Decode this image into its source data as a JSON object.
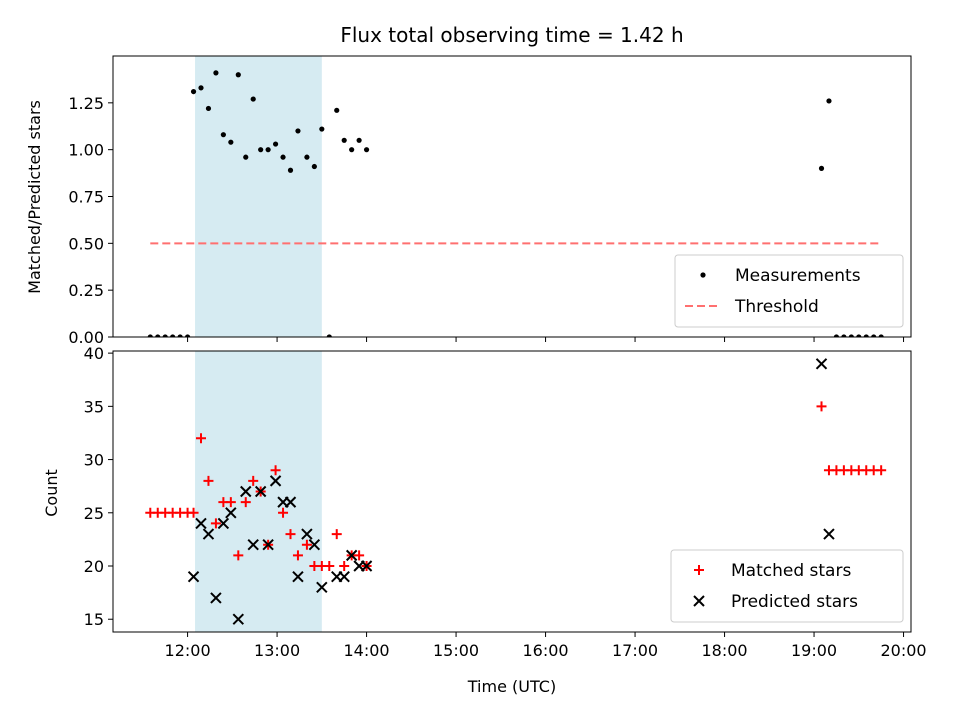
{
  "chart_data": [
    {
      "type": "scatter",
      "title": "Flux total observing time = 1.42 h",
      "xlabel": "",
      "ylabel": "Matched/Predicted stars",
      "xlim": [
        "11:10",
        "20:05"
      ],
      "ylim": [
        0,
        1.5
      ],
      "yticks": [
        0,
        0.25,
        0.5,
        0.75,
        1.0,
        1.25
      ],
      "ytick_labels": [
        "0.00",
        "0.25",
        "0.50",
        "0.75",
        "1.00",
        "1.25"
      ],
      "shaded_interval": [
        "12:05",
        "13:30"
      ],
      "legend": {
        "placement": "lower right",
        "entries": [
          "Measurements",
          "Threshold"
        ]
      },
      "series": [
        {
          "name": "Measurements",
          "color": "#000000",
          "marker": "dot",
          "points": [
            [
              "11:35",
              0
            ],
            [
              "11:40",
              0
            ],
            [
              "11:45",
              0
            ],
            [
              "11:50",
              0
            ],
            [
              "11:55",
              0
            ],
            [
              "12:00",
              0
            ],
            [
              "12:04",
              1.31
            ],
            [
              "12:09",
              1.33
            ],
            [
              "12:14",
              1.22
            ],
            [
              "12:19",
              1.41
            ],
            [
              "12:24",
              1.08
            ],
            [
              "12:29",
              1.04
            ],
            [
              "12:34",
              1.4
            ],
            [
              "12:39",
              0.96
            ],
            [
              "12:44",
              1.27
            ],
            [
              "12:49",
              1.0
            ],
            [
              "12:54",
              1.0
            ],
            [
              "12:59",
              1.03
            ],
            [
              "13:04",
              0.96
            ],
            [
              "13:09",
              0.89
            ],
            [
              "13:14",
              1.1
            ],
            [
              "13:20",
              0.96
            ],
            [
              "13:25",
              0.91
            ],
            [
              "13:30",
              1.11
            ],
            [
              "13:35",
              0
            ],
            [
              "13:40",
              1.21
            ],
            [
              "13:45",
              1.05
            ],
            [
              "13:50",
              1.0
            ],
            [
              "13:55",
              1.05
            ],
            [
              "14:00",
              1.0
            ],
            [
              "19:05",
              0.9
            ],
            [
              "19:10",
              1.26
            ],
            [
              "19:15",
              0
            ],
            [
              "19:20",
              0
            ],
            [
              "19:25",
              0
            ],
            [
              "19:30",
              0
            ],
            [
              "19:35",
              0
            ],
            [
              "19:40",
              0
            ],
            [
              "19:45",
              0
            ]
          ]
        },
        {
          "name": "Threshold",
          "color": "#ff7070",
          "style": "dashed",
          "points": [
            [
              "11:35",
              0.5
            ],
            [
              "19:45",
              0.5
            ]
          ]
        }
      ]
    },
    {
      "type": "scatter",
      "title": "",
      "xlabel": "Time (UTC)",
      "ylabel": "Count",
      "xlim": [
        "11:10",
        "20:05"
      ],
      "ylim": [
        13.8,
        40.2
      ],
      "yticks": [
        15,
        20,
        25,
        30,
        35,
        40
      ],
      "xticks": [
        "12:00",
        "13:00",
        "14:00",
        "15:00",
        "16:00",
        "17:00",
        "18:00",
        "19:00",
        "20:00"
      ],
      "shaded_interval": [
        "12:05",
        "13:30"
      ],
      "legend": {
        "placement": "lower right",
        "entries": [
          "Matched stars",
          "Predicted stars"
        ]
      },
      "series": [
        {
          "name": "Matched stars",
          "color": "#ff0000",
          "marker": "plus",
          "points": [
            [
              "11:35",
              25
            ],
            [
              "11:40",
              25
            ],
            [
              "11:45",
              25
            ],
            [
              "11:50",
              25
            ],
            [
              "11:55",
              25
            ],
            [
              "12:00",
              25
            ],
            [
              "12:04",
              25
            ],
            [
              "12:09",
              32
            ],
            [
              "12:14",
              28
            ],
            [
              "12:19",
              24
            ],
            [
              "12:24",
              26
            ],
            [
              "12:29",
              26
            ],
            [
              "12:34",
              21
            ],
            [
              "12:39",
              26
            ],
            [
              "12:44",
              28
            ],
            [
              "12:49",
              27
            ],
            [
              "12:54",
              22
            ],
            [
              "12:59",
              29
            ],
            [
              "13:04",
              25
            ],
            [
              "13:09",
              23
            ],
            [
              "13:14",
              21
            ],
            [
              "13:20",
              22
            ],
            [
              "13:25",
              20
            ],
            [
              "13:30",
              20
            ],
            [
              "13:35",
              20
            ],
            [
              "13:40",
              23
            ],
            [
              "13:45",
              20
            ],
            [
              "13:50",
              21
            ],
            [
              "13:55",
              21
            ],
            [
              "14:00",
              20
            ],
            [
              "19:05",
              35
            ],
            [
              "19:10",
              29
            ],
            [
              "19:15",
              29
            ],
            [
              "19:20",
              29
            ],
            [
              "19:25",
              29
            ],
            [
              "19:30",
              29
            ],
            [
              "19:35",
              29
            ],
            [
              "19:40",
              29
            ],
            [
              "19:45",
              29
            ]
          ]
        },
        {
          "name": "Predicted stars",
          "color": "#000000",
          "marker": "x",
          "points": [
            [
              "12:04",
              19
            ],
            [
              "12:09",
              24
            ],
            [
              "12:14",
              23
            ],
            [
              "12:19",
              17
            ],
            [
              "12:24",
              24
            ],
            [
              "12:29",
              25
            ],
            [
              "12:34",
              15
            ],
            [
              "12:39",
              27
            ],
            [
              "12:44",
              22
            ],
            [
              "12:49",
              27
            ],
            [
              "12:54",
              22
            ],
            [
              "12:59",
              28
            ],
            [
              "13:04",
              26
            ],
            [
              "13:09",
              26
            ],
            [
              "13:14",
              19
            ],
            [
              "13:20",
              23
            ],
            [
              "13:25",
              22
            ],
            [
              "13:30",
              18
            ],
            [
              "13:40",
              19
            ],
            [
              "13:45",
              19
            ],
            [
              "13:50",
              21
            ],
            [
              "13:55",
              20
            ],
            [
              "14:00",
              20
            ],
            [
              "19:05",
              39
            ],
            [
              "19:10",
              23
            ]
          ]
        }
      ]
    }
  ]
}
